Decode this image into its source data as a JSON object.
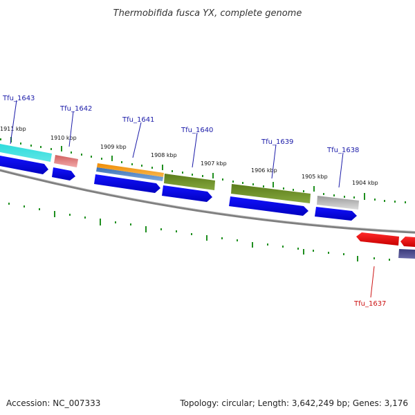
{
  "title": "Thermobifida fusca YX, complete genome",
  "footer": {
    "accession": "Accession: NC_007333",
    "summary": "Topology: circular; Length: 3,642,249 bp; Genes: 3,176"
  },
  "ticks": [
    {
      "label": "1911 kbp"
    },
    {
      "label": "1910 kbp"
    },
    {
      "label": "1909 kbp"
    },
    {
      "label": "1908 kbp"
    },
    {
      "label": "1907 kbp"
    },
    {
      "label": "1906 kbp"
    },
    {
      "label": "1905 kbp"
    },
    {
      "label": "1904 kbp"
    }
  ],
  "genes": [
    {
      "label": "Tfu_1643",
      "color": "#1a1aa8"
    },
    {
      "label": "Tfu_1642",
      "color": "#1a1aa8"
    },
    {
      "label": "Tfu_1641",
      "color": "#1a1aa8"
    },
    {
      "label": "Tfu_1640",
      "color": "#1a1aa8"
    },
    {
      "label": "Tfu_1639",
      "color": "#1a1aa8"
    },
    {
      "label": "Tfu_1638",
      "color": "#1a1aa8"
    },
    {
      "label": "Tfu_1637",
      "color": "#cc1111"
    }
  ],
  "colors": {
    "forward_cds": "#0a0af0",
    "reverse_cds": "#ee0a0a",
    "backbone": "#808080",
    "tick": "#1f8f1f",
    "cyan_feature": "#25d0d0",
    "pink_feature": "#e07b7b",
    "orange_feature": "#f59a12",
    "steel_feature": "#4f86c6",
    "olive_feature": "#6b8e23",
    "grey_feature": "#b5b5b5",
    "dark_purple_feature": "#4a4a8a"
  }
}
